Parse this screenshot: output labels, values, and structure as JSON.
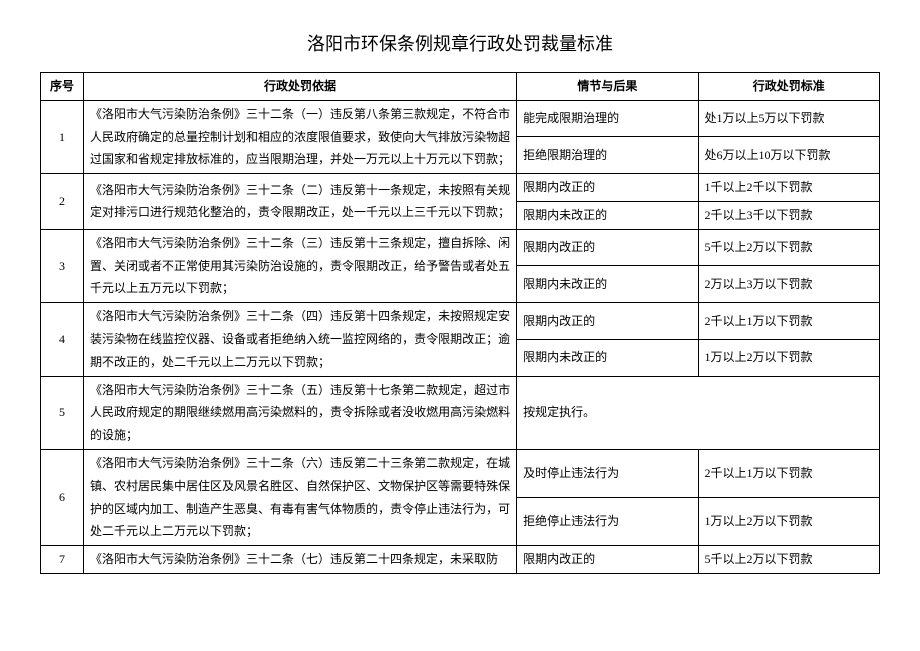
{
  "title": "洛阳市环保条例规章行政处罚裁量标准",
  "headers": {
    "seq": "序号",
    "basis": "行政处罚依据",
    "circ": "情节与后果",
    "std": "行政处罚标准"
  },
  "rows": [
    {
      "seq": "1",
      "basis": "《洛阳市大气污染防治条例》三十二条（一）违反第八条第三款规定，不符合市人民政府确定的总量控制计划和相应的浓度限值要求，致使向大气排放污染物超过国家和省规定排放标准的，应当限期治理，并处一万元以上十万元以下罚款；",
      "sub": [
        {
          "circ": "能完成限期治理的",
          "std": "处1万以上5万以下罚款"
        },
        {
          "circ": "拒绝限期治理的",
          "std": "处6万以上10万以下罚款"
        }
      ]
    },
    {
      "seq": "2",
      "basis": "《洛阳市大气污染防治条例》三十二条（二）违反第十一条规定，未按照有关规定对排污口进行规范化整治的，责令限期改正，处一千元以上三千元以下罚款；",
      "sub": [
        {
          "circ": "限期内改正的",
          "std": "1千以上2千以下罚款"
        },
        {
          "circ": "限期内未改正的",
          "std": "2千以上3千以下罚款"
        }
      ]
    },
    {
      "seq": "3",
      "basis": "《洛阳市大气污染防治条例》三十二条（三）违反第十三条规定，擅自拆除、闲置、关闭或者不正常使用其污染防治设施的，责令限期改正，给予警告或者处五千元以上五万元以下罚款；",
      "sub": [
        {
          "circ": "限期内改正的",
          "std": "5千以上2万以下罚款"
        },
        {
          "circ": "限期内未改正的",
          "std": "2万以上3万以下罚款"
        }
      ]
    },
    {
      "seq": "4",
      "basis": "《洛阳市大气污染防治条例》三十二条（四）违反第十四条规定，未按照规定安装污染物在线监控仪器、设备或者拒绝纳入统一监控网络的，责令限期改正；逾期不改正的，处二千元以上二万元以下罚款；",
      "sub": [
        {
          "circ": "限期内改正的",
          "std": "2千以上1万以下罚款"
        },
        {
          "circ": "限期内未改正的",
          "std": "1万以上2万以下罚款"
        }
      ]
    },
    {
      "seq": "5",
      "basis": "《洛阳市大气污染防治条例》三十二条（五）违反第十七条第二款规定，超过市人民政府规定的期限继续燃用高污染燃料的，责令拆除或者没收燃用高污染燃料的设施；",
      "sub": [
        {
          "circ": "按规定执行。",
          "std": ""
        }
      ]
    },
    {
      "seq": "6",
      "basis": "《洛阳市大气污染防治条例》三十二条（六）违反第二十三条第二款规定，在城镇、农村居民集中居住区及风景名胜区、自然保护区、文物保护区等需要特殊保护的区域内加工、制造产生恶臭、有毒有害气体物质的，责令停止违法行为，可处二千元以上二万元以下罚款；",
      "sub": [
        {
          "circ": "及时停止违法行为",
          "std": "2千以上1万以下罚款"
        },
        {
          "circ": "拒绝停止违法行为",
          "std": "1万以上2万以下罚款"
        }
      ]
    },
    {
      "seq": "7",
      "basis": "《洛阳市大气污染防治条例》三十二条（七）违反第二十四条规定，未采取防",
      "sub": [
        {
          "circ": "限期内改正的",
          "std": "5千以上2万以下罚款"
        }
      ]
    }
  ]
}
